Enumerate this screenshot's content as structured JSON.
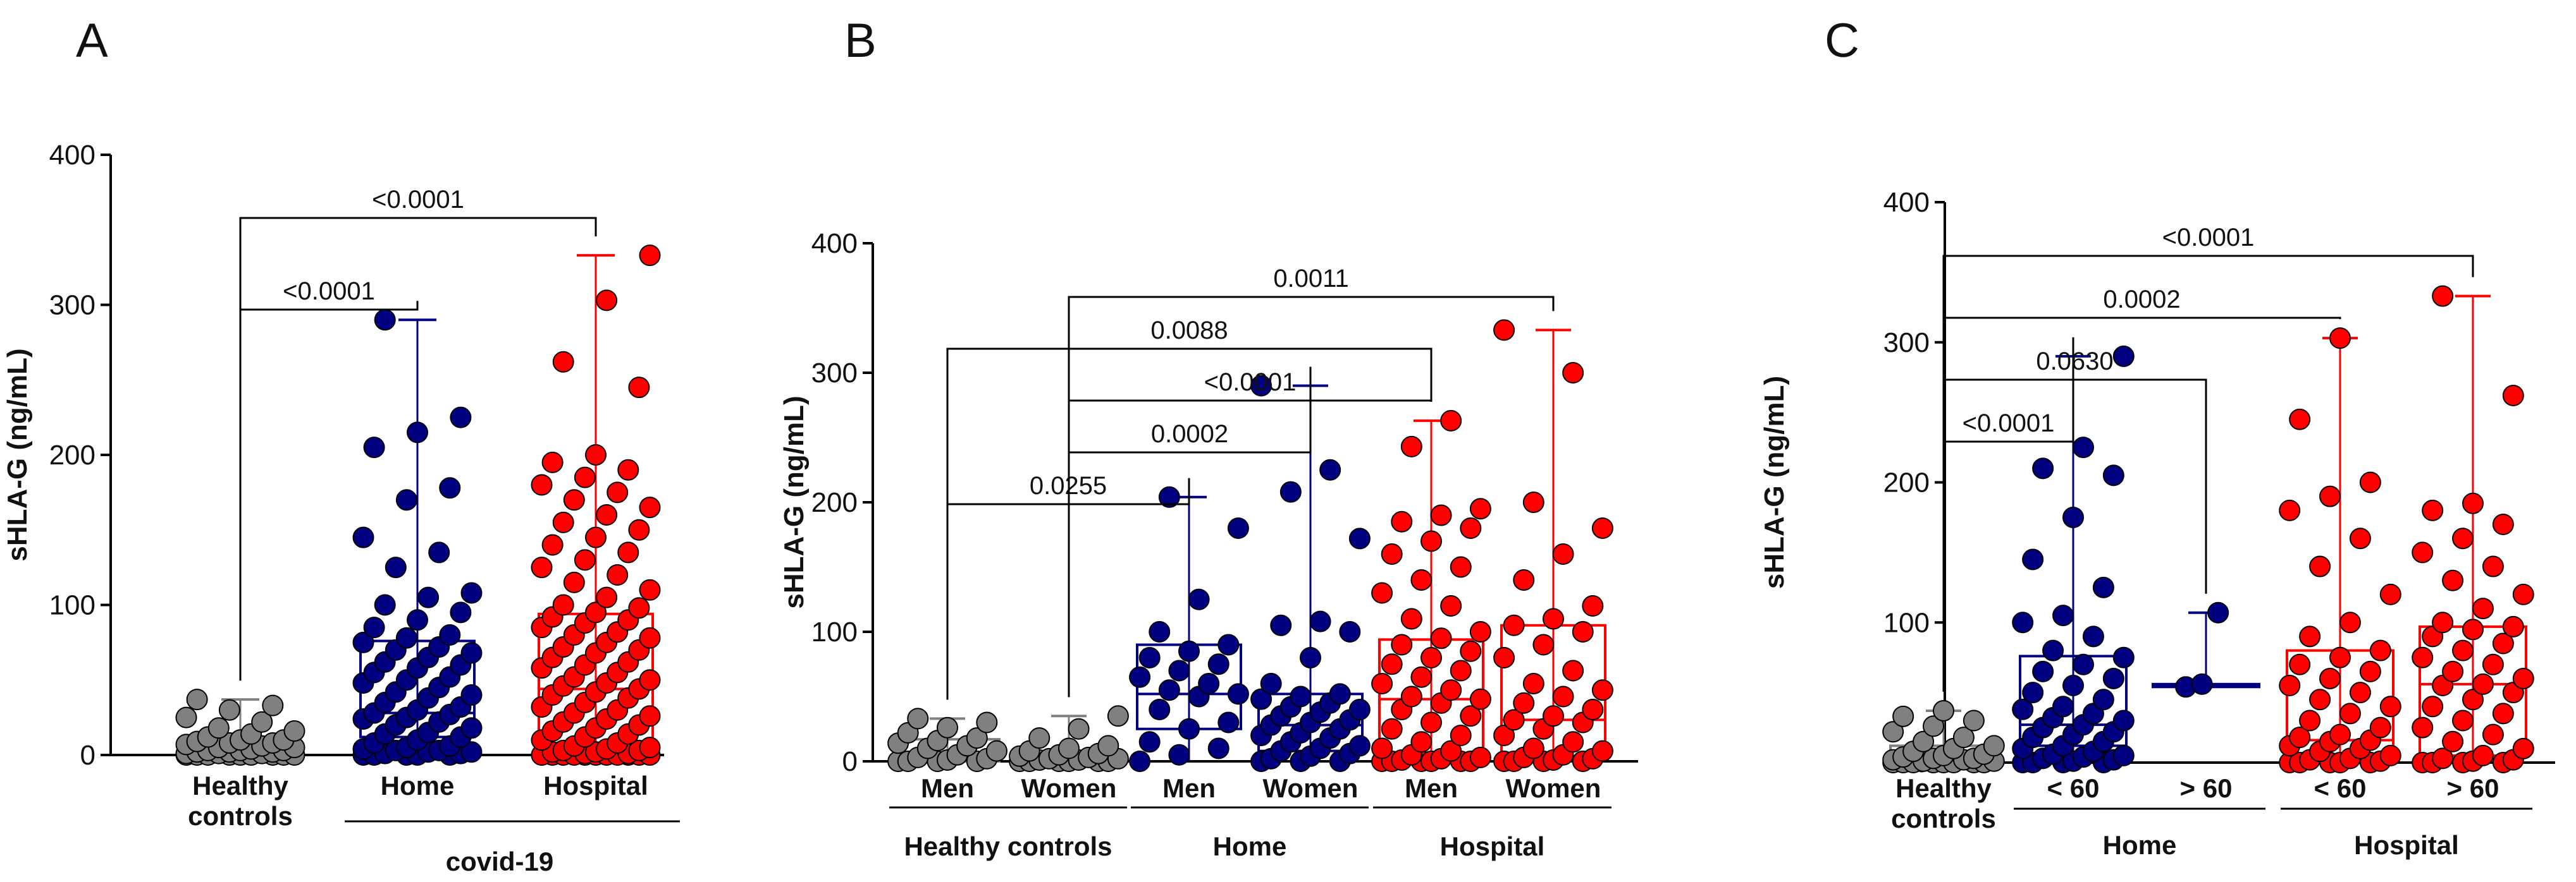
{
  "figure": {
    "panel_labels": [
      "A",
      "B",
      "C"
    ],
    "y_label": "sHLA-G (ng/mL)"
  },
  "colors": {
    "healthy": "#808080",
    "home": "#000080",
    "hospital": "#ff0000",
    "axis": "#000000"
  },
  "chart_data": [
    {
      "type": "box-scatter",
      "panel": "A",
      "ylabel": "sHLA-G (ng/mL)",
      "ylim": [
        0,
        400
      ],
      "yticks": [
        "0",
        "100",
        "200",
        "300",
        "400"
      ],
      "categories": [
        "Healthy controls",
        "Home",
        "Hospital"
      ],
      "group_label": "covid-19",
      "boxes": [
        {
          "name": "Healthy controls",
          "color": "healthy",
          "min": 0,
          "q1": 0,
          "median": 3,
          "q3": 12,
          "max": 37,
          "points": [
            0,
            0,
            0,
            0,
            0,
            0,
            0,
            0,
            0,
            1,
            1,
            1,
            2,
            2,
            2,
            3,
            3,
            3,
            4,
            5,
            5,
            6,
            7,
            8,
            8,
            9,
            10,
            10,
            12,
            14,
            16,
            18,
            22,
            25,
            30,
            33,
            37
          ]
        },
        {
          "name": "Home",
          "color": "home",
          "min": 0,
          "q1": 12,
          "median": 28,
          "q3": 76,
          "max": 290,
          "points": [
            0,
            0,
            0,
            0,
            0,
            1,
            1,
            2,
            2,
            3,
            3,
            4,
            5,
            6,
            8,
            10,
            12,
            14,
            15,
            18,
            20,
            22,
            24,
            25,
            27,
            28,
            30,
            32,
            35,
            38,
            40,
            42,
            45,
            48,
            50,
            52,
            55,
            58,
            60,
            62,
            65,
            68,
            70,
            72,
            75,
            78,
            80,
            85,
            90,
            95,
            100,
            105,
            108,
            125,
            135,
            145,
            170,
            178,
            205,
            215,
            225,
            290
          ]
        },
        {
          "name": "Hospital",
          "color": "hospital",
          "min": 0,
          "q1": 5,
          "median": 44,
          "q3": 94,
          "max": 333,
          "points": [
            0,
            0,
            0,
            0,
            0,
            0,
            0,
            0,
            0,
            0,
            0,
            0,
            1,
            1,
            2,
            2,
            3,
            3,
            4,
            5,
            6,
            8,
            10,
            12,
            14,
            16,
            18,
            20,
            22,
            24,
            26,
            28,
            30,
            32,
            35,
            38,
            40,
            42,
            44,
            46,
            48,
            50,
            52,
            55,
            58,
            60,
            62,
            65,
            68,
            70,
            72,
            75,
            78,
            80,
            82,
            85,
            88,
            90,
            92,
            95,
            98,
            100,
            105,
            110,
            115,
            120,
            125,
            130,
            135,
            140,
            145,
            150,
            155,
            160,
            165,
            170,
            175,
            180,
            185,
            190,
            195,
            200,
            245,
            262,
            303,
            333
          ]
        }
      ],
      "comparisons": [
        {
          "from": 0,
          "to": 1,
          "p": "<0.0001",
          "level": 1
        },
        {
          "from": 0,
          "to": 2,
          "p": "<0.0001",
          "level": 2
        }
      ]
    },
    {
      "type": "box-scatter",
      "panel": "B",
      "ylabel": "sHLA-G (ng/mL)",
      "ylim": [
        0,
        400
      ],
      "yticks": [
        "0",
        "100",
        "200",
        "300",
        "400"
      ],
      "categories": [
        "Men",
        "Women",
        "Men",
        "Women",
        "Men",
        "Women"
      ],
      "groups": [
        {
          "label": "Healthy controls",
          "from": 0,
          "to": 1
        },
        {
          "label": "Home",
          "from": 2,
          "to": 3
        },
        {
          "label": "Hospital",
          "from": 4,
          "to": 5
        }
      ],
      "boxes": [
        {
          "name": "Men",
          "color": "healthy",
          "min": 0,
          "q1": 0,
          "median": 5,
          "q3": 17,
          "max": 33,
          "points": [
            0,
            0,
            0,
            0,
            1,
            2,
            3,
            5,
            8,
            10,
            12,
            14,
            16,
            18,
            22,
            26,
            30,
            33
          ]
        },
        {
          "name": "Women",
          "color": "healthy",
          "min": 0,
          "q1": 0,
          "median": 2,
          "q3": 6,
          "max": 35,
          "points": [
            0,
            0,
            0,
            0,
            0,
            0,
            1,
            1,
            2,
            2,
            3,
            4,
            5,
            6,
            8,
            10,
            12,
            18,
            25,
            35
          ]
        },
        {
          "name": "Men",
          "color": "home",
          "min": 0,
          "q1": 25,
          "median": 52,
          "q3": 90,
          "max": 204,
          "points": [
            0,
            5,
            10,
            15,
            25,
            30,
            40,
            50,
            52,
            55,
            60,
            65,
            70,
            75,
            80,
            85,
            90,
            100,
            125,
            180,
            204
          ]
        },
        {
          "name": "Women",
          "color": "home",
          "min": 0,
          "q1": 8,
          "median": 28,
          "q3": 52,
          "max": 290,
          "points": [
            0,
            0,
            0,
            2,
            4,
            6,
            8,
            10,
            12,
            15,
            18,
            20,
            22,
            25,
            28,
            30,
            32,
            35,
            38,
            40,
            42,
            45,
            48,
            50,
            52,
            60,
            80,
            100,
            105,
            108,
            172,
            208,
            225,
            290
          ]
        },
        {
          "name": "Men",
          "color": "hospital",
          "min": 0,
          "q1": 3,
          "median": 48,
          "q3": 94,
          "max": 263,
          "points": [
            0,
            0,
            0,
            0,
            0,
            0,
            1,
            2,
            3,
            5,
            8,
            10,
            15,
            20,
            25,
            30,
            35,
            40,
            45,
            48,
            50,
            55,
            60,
            65,
            70,
            75,
            80,
            85,
            90,
            95,
            100,
            110,
            120,
            130,
            140,
            150,
            160,
            170,
            180,
            185,
            190,
            195,
            243,
            263
          ]
        },
        {
          "name": "Women",
          "color": "hospital",
          "min": 0,
          "q1": 3,
          "median": 32,
          "q3": 105,
          "max": 333,
          "points": [
            0,
            0,
            0,
            0,
            1,
            2,
            3,
            5,
            8,
            10,
            15,
            20,
            25,
            30,
            32,
            35,
            40,
            45,
            50,
            55,
            60,
            70,
            80,
            90,
            100,
            105,
            110,
            120,
            140,
            160,
            180,
            200,
            300,
            333
          ]
        }
      ],
      "comparisons": [
        {
          "from": 0,
          "to": 2,
          "p": "0.0255",
          "level": 1
        },
        {
          "from": 1,
          "to": 3,
          "p": "0.0002",
          "level": 2
        },
        {
          "from": 1,
          "to": 4,
          "p": "<0.0001",
          "level": 3
        },
        {
          "from": 0,
          "to": 4,
          "p": "0.0088",
          "level": 4
        },
        {
          "from": 1,
          "to": 5,
          "p": "0.0011",
          "level": 5
        }
      ]
    },
    {
      "type": "box-scatter",
      "panel": "C",
      "ylabel": "sHLA-G (ng/mL)",
      "ylim": [
        0,
        400
      ],
      "yticks": [
        "0",
        "100",
        "200",
        "300",
        "400"
      ],
      "categories": [
        "Healthy controls",
        "< 60",
        "> 60",
        "< 60",
        "> 60"
      ],
      "groups": [
        {
          "label": "Home",
          "from": 1,
          "to": 2
        },
        {
          "label": "Hospital",
          "from": 3,
          "to": 4
        }
      ],
      "boxes": [
        {
          "name": "Healthy controls",
          "color": "healthy",
          "min": 0,
          "q1": 0,
          "median": 3,
          "q3": 12,
          "max": 37,
          "points": [
            0,
            0,
            0,
            0,
            0,
            0,
            0,
            0,
            1,
            1,
            2,
            2,
            3,
            3,
            4,
            5,
            6,
            8,
            10,
            12,
            15,
            18,
            22,
            26,
            30,
            33,
            37
          ]
        },
        {
          "name": "< 60",
          "color": "home",
          "min": 0,
          "q1": 12,
          "median": 27,
          "q3": 76,
          "max": 290,
          "points": [
            0,
            0,
            0,
            0,
            1,
            2,
            3,
            4,
            5,
            6,
            8,
            10,
            12,
            15,
            18,
            20,
            22,
            25,
            27,
            30,
            32,
            35,
            38,
            40,
            45,
            50,
            55,
            60,
            65,
            70,
            75,
            80,
            90,
            100,
            105,
            125,
            145,
            175,
            205,
            210,
            225,
            290
          ]
        },
        {
          "name": "> 60",
          "color": "home",
          "min": 54,
          "q1": 54,
          "median": 55,
          "q3": 56,
          "max": 107,
          "points": [
            54,
            56,
            107
          ]
        },
        {
          "name": "< 60",
          "color": "hospital",
          "min": 0,
          "q1": 3,
          "median": 16,
          "q3": 80,
          "max": 303,
          "points": [
            0,
            0,
            0,
            0,
            0,
            1,
            2,
            3,
            5,
            8,
            10,
            12,
            15,
            16,
            18,
            20,
            25,
            30,
            35,
            40,
            45,
            50,
            55,
            60,
            65,
            70,
            75,
            80,
            90,
            100,
            120,
            140,
            160,
            180,
            190,
            200,
            245,
            303
          ]
        },
        {
          "name": "> 60",
          "color": "hospital",
          "min": 0,
          "q1": 5,
          "median": 56,
          "q3": 97,
          "max": 333,
          "points": [
            0,
            0,
            0,
            0,
            1,
            2,
            3,
            5,
            10,
            15,
            20,
            25,
            30,
            35,
            40,
            45,
            50,
            55,
            56,
            60,
            65,
            70,
            75,
            80,
            85,
            90,
            95,
            97,
            100,
            110,
            120,
            130,
            140,
            150,
            160,
            170,
            180,
            185,
            262,
            333
          ]
        }
      ],
      "comparisons": [
        {
          "from": 0,
          "to": 1,
          "p": "<0.0001",
          "level": 1
        },
        {
          "from": 0,
          "to": 2,
          "p": "0.0630",
          "level": 2
        },
        {
          "from": 0,
          "to": 3,
          "p": "0.0002",
          "level": 3
        },
        {
          "from": 0,
          "to": 4,
          "p": "<0.0001",
          "level": 4
        }
      ]
    }
  ]
}
